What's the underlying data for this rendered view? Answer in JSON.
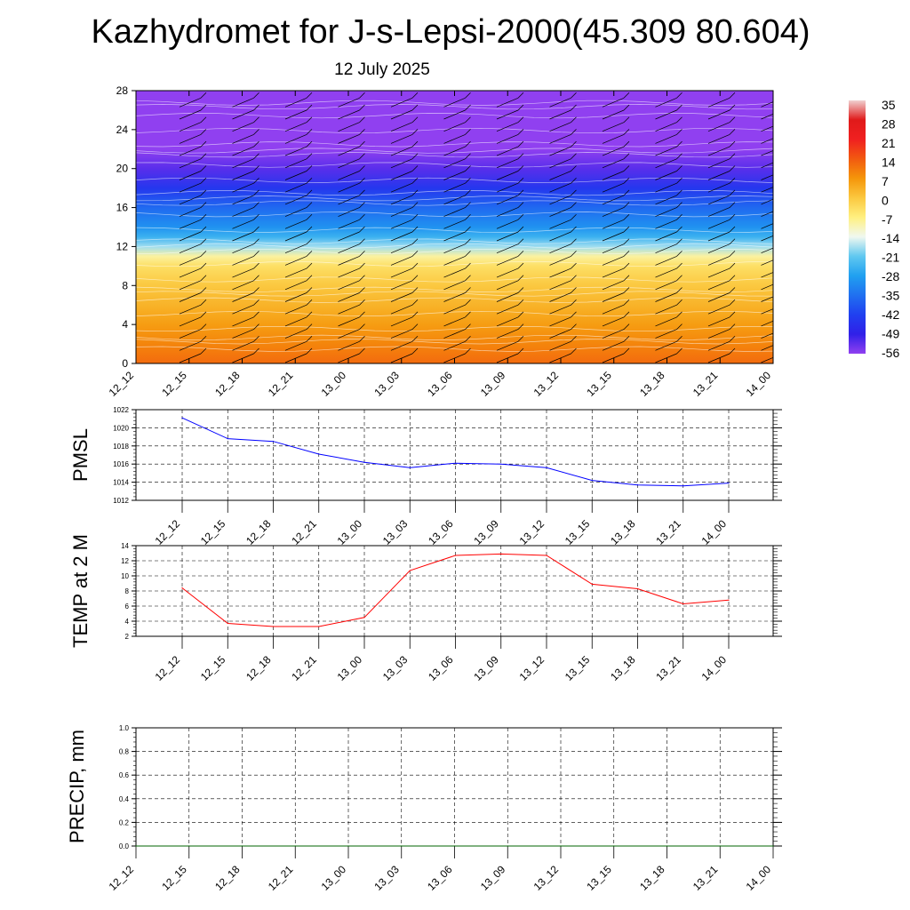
{
  "title": "Kazhydromet for J-s-Lepsi-2000(45.309 80.604)",
  "date": "12 July 2025",
  "colors": {
    "pmsl_line": "#0000ff",
    "temp_line": "#ff0000",
    "precip_line": "#006400",
    "wind_barb": "#000000",
    "contour": "#ffffff"
  },
  "chart_data": [
    {
      "type": "heatmap",
      "title": "",
      "xlabel": "",
      "ylabel": "",
      "x": [
        "12_12",
        "12_15",
        "12_18",
        "12_21",
        "13_00",
        "13_03",
        "13_06",
        "13_09",
        "13_12",
        "13_15",
        "13_18",
        "13_21",
        "14_00"
      ],
      "yticks": [
        0,
        4,
        8,
        12,
        16,
        20,
        24,
        28
      ],
      "ylim": [
        0,
        28
      ],
      "colorbar": {
        "labels": [
          "35",
          "28",
          "21",
          "14",
          "7",
          "0",
          "-7",
          "-14",
          "-21",
          "-28",
          "-35",
          "-42",
          "-49",
          "-56"
        ],
        "stops": [
          {
            "value": 35,
            "color": "#f0d0d0"
          },
          {
            "value": 28,
            "color": "#e01a1a"
          },
          {
            "value": 21,
            "color": "#f02020"
          },
          {
            "value": 14,
            "color": "#f25a10"
          },
          {
            "value": 7,
            "color": "#f5960a"
          },
          {
            "value": 0,
            "color": "#fbc840"
          },
          {
            "value": -7,
            "color": "#fff080"
          },
          {
            "value": -14,
            "color": "#f0f8f0"
          },
          {
            "value": -21,
            "color": "#60c8f0"
          },
          {
            "value": -28,
            "color": "#20a0f0"
          },
          {
            "value": -35,
            "color": "#2070f0"
          },
          {
            "value": -42,
            "color": "#2040f0"
          },
          {
            "value": -49,
            "color": "#3020e8"
          },
          {
            "value": -56,
            "color": "#9040f0"
          }
        ]
      },
      "level_bands": [
        {
          "y": 0,
          "value": 12
        },
        {
          "y": 2,
          "value": 9
        },
        {
          "y": 4,
          "value": 6
        },
        {
          "y": 6,
          "value": 3
        },
        {
          "y": 8,
          "value": 0
        },
        {
          "y": 10,
          "value": -4
        },
        {
          "y": 11,
          "value": -9
        },
        {
          "y": 12,
          "value": -18
        },
        {
          "y": 13,
          "value": -25
        },
        {
          "y": 14,
          "value": -30
        },
        {
          "y": 16,
          "value": -36
        },
        {
          "y": 18,
          "value": -44
        },
        {
          "y": 20,
          "value": -52
        },
        {
          "y": 22,
          "value": -56
        },
        {
          "y": 24,
          "value": -58
        },
        {
          "y": 28,
          "value": -59
        }
      ]
    },
    {
      "type": "line",
      "ylabel": "PMSL",
      "x": [
        "12_12",
        "12_15",
        "12_18",
        "12_21",
        "13_00",
        "13_03",
        "13_06",
        "13_09",
        "13_12",
        "13_15",
        "13_18",
        "13_21",
        "14_00"
      ],
      "series": [
        {
          "values": [
            1021.1,
            1018.8,
            1018.5,
            1017.1,
            1016.2,
            1015.6,
            1016.1,
            1016.0,
            1015.6,
            1014.2,
            1013.7,
            1013.6,
            1013.9
          ]
        }
      ],
      "yticks": [
        "1012",
        "1014",
        "1016",
        "1018",
        "1020",
        "1022"
      ],
      "ylim": [
        1012,
        1022
      ],
      "grid": true
    },
    {
      "type": "line",
      "ylabel": "TEMP at 2 M",
      "x": [
        "12_12",
        "12_15",
        "12_18",
        "12_21",
        "13_00",
        "13_03",
        "13_06",
        "13_09",
        "13_12",
        "13_15",
        "13_18",
        "13_21",
        "14_00"
      ],
      "series": [
        {
          "values": [
            8.4,
            3.7,
            3.3,
            3.3,
            4.5,
            10.7,
            12.7,
            12.9,
            12.7,
            8.9,
            8.3,
            6.3,
            6.8
          ]
        }
      ],
      "yticks": [
        "2",
        "4",
        "6",
        "8",
        "10",
        "12",
        "14"
      ],
      "ylim": [
        2,
        14
      ],
      "grid": true
    },
    {
      "type": "line",
      "ylabel": "PRECIP, mm",
      "x": [
        "12_12",
        "12_15",
        "12_18",
        "12_21",
        "13_00",
        "13_03",
        "13_06",
        "13_09",
        "13_12",
        "13_15",
        "13_18",
        "13_21",
        "14_00"
      ],
      "series": [
        {
          "values": [
            0,
            0,
            0,
            0,
            0,
            0,
            0,
            0,
            0,
            0,
            0,
            0,
            0
          ]
        }
      ],
      "yticks": [
        "0.0",
        "0.2",
        "0.4",
        "0.6",
        "0.8",
        "1.0"
      ],
      "ylim": [
        0,
        1
      ],
      "grid": true
    }
  ]
}
